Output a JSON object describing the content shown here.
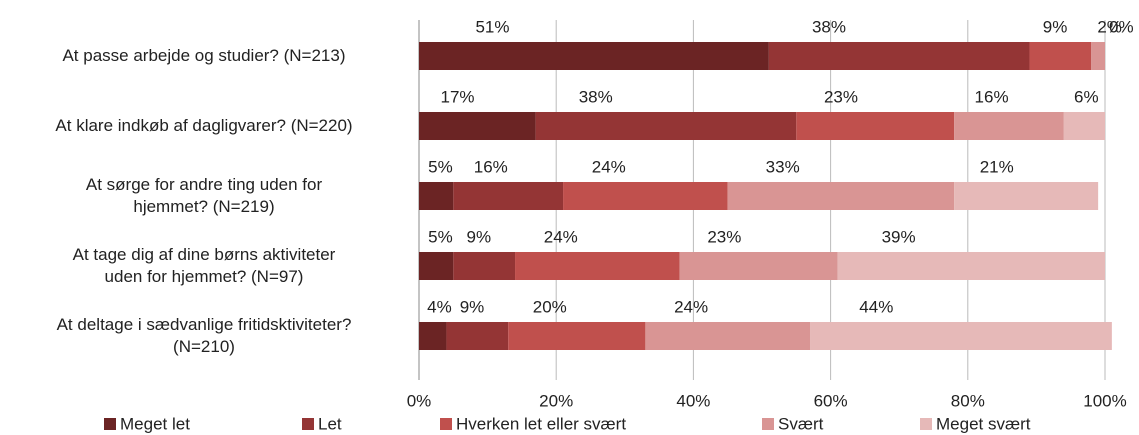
{
  "chart_data": {
    "type": "stacked_bar_horizontal",
    "categories": [
      "At passe arbejde og studier? (N=213)",
      "At klare indkøb af dagligvarer? (N=220)",
      "At sørge for andre ting uden for\nhjemmet? (N=219)",
      "At tage dig af dine børns aktiviteter\nuden for hjemmet? (N=97)",
      "At deltage i sædvanlige fritidsktiviteter?\n(N=210)"
    ],
    "series": [
      {
        "name": "Meget let",
        "color": "#6b2424",
        "values": [
          51,
          17,
          5,
          5,
          4
        ],
        "value_labels": [
          "51%",
          "17%",
          "5%",
          "5%",
          "4%"
        ]
      },
      {
        "name": "Let",
        "color": "#943535",
        "values": [
          38,
          38,
          16,
          9,
          9
        ],
        "value_labels": [
          "38%",
          "38%",
          "16%",
          "9%",
          "9%"
        ]
      },
      {
        "name": "Hverken let eller svært",
        "color": "#c0504d",
        "values": [
          9,
          23,
          24,
          24,
          20
        ],
        "value_labels": [
          "9%",
          "23%",
          "24%",
          "24%",
          "20%"
        ]
      },
      {
        "name": "Svært",
        "color": "#d99594",
        "values": [
          2,
          16,
          33,
          23,
          24
        ],
        "value_labels": [
          "2%",
          "16%",
          "33%",
          "23%",
          "24%"
        ]
      },
      {
        "name": "Meget svært",
        "color": "#e6b9b8",
        "values": [
          0,
          6,
          21,
          39,
          44
        ],
        "value_labels": [
          "0%",
          "6%",
          "21%",
          "39%",
          "44%"
        ]
      }
    ],
    "xlim": [
      0,
      100
    ],
    "xticks": [
      {
        "value": 0,
        "label": "0%"
      },
      {
        "value": 20,
        "label": "20%"
      },
      {
        "value": 40,
        "label": "40%"
      },
      {
        "value": 60,
        "label": "60%"
      },
      {
        "value": 80,
        "label": "80%"
      },
      {
        "value": 100,
        "label": "100%"
      }
    ],
    "grid": true,
    "legend": "bottom"
  }
}
